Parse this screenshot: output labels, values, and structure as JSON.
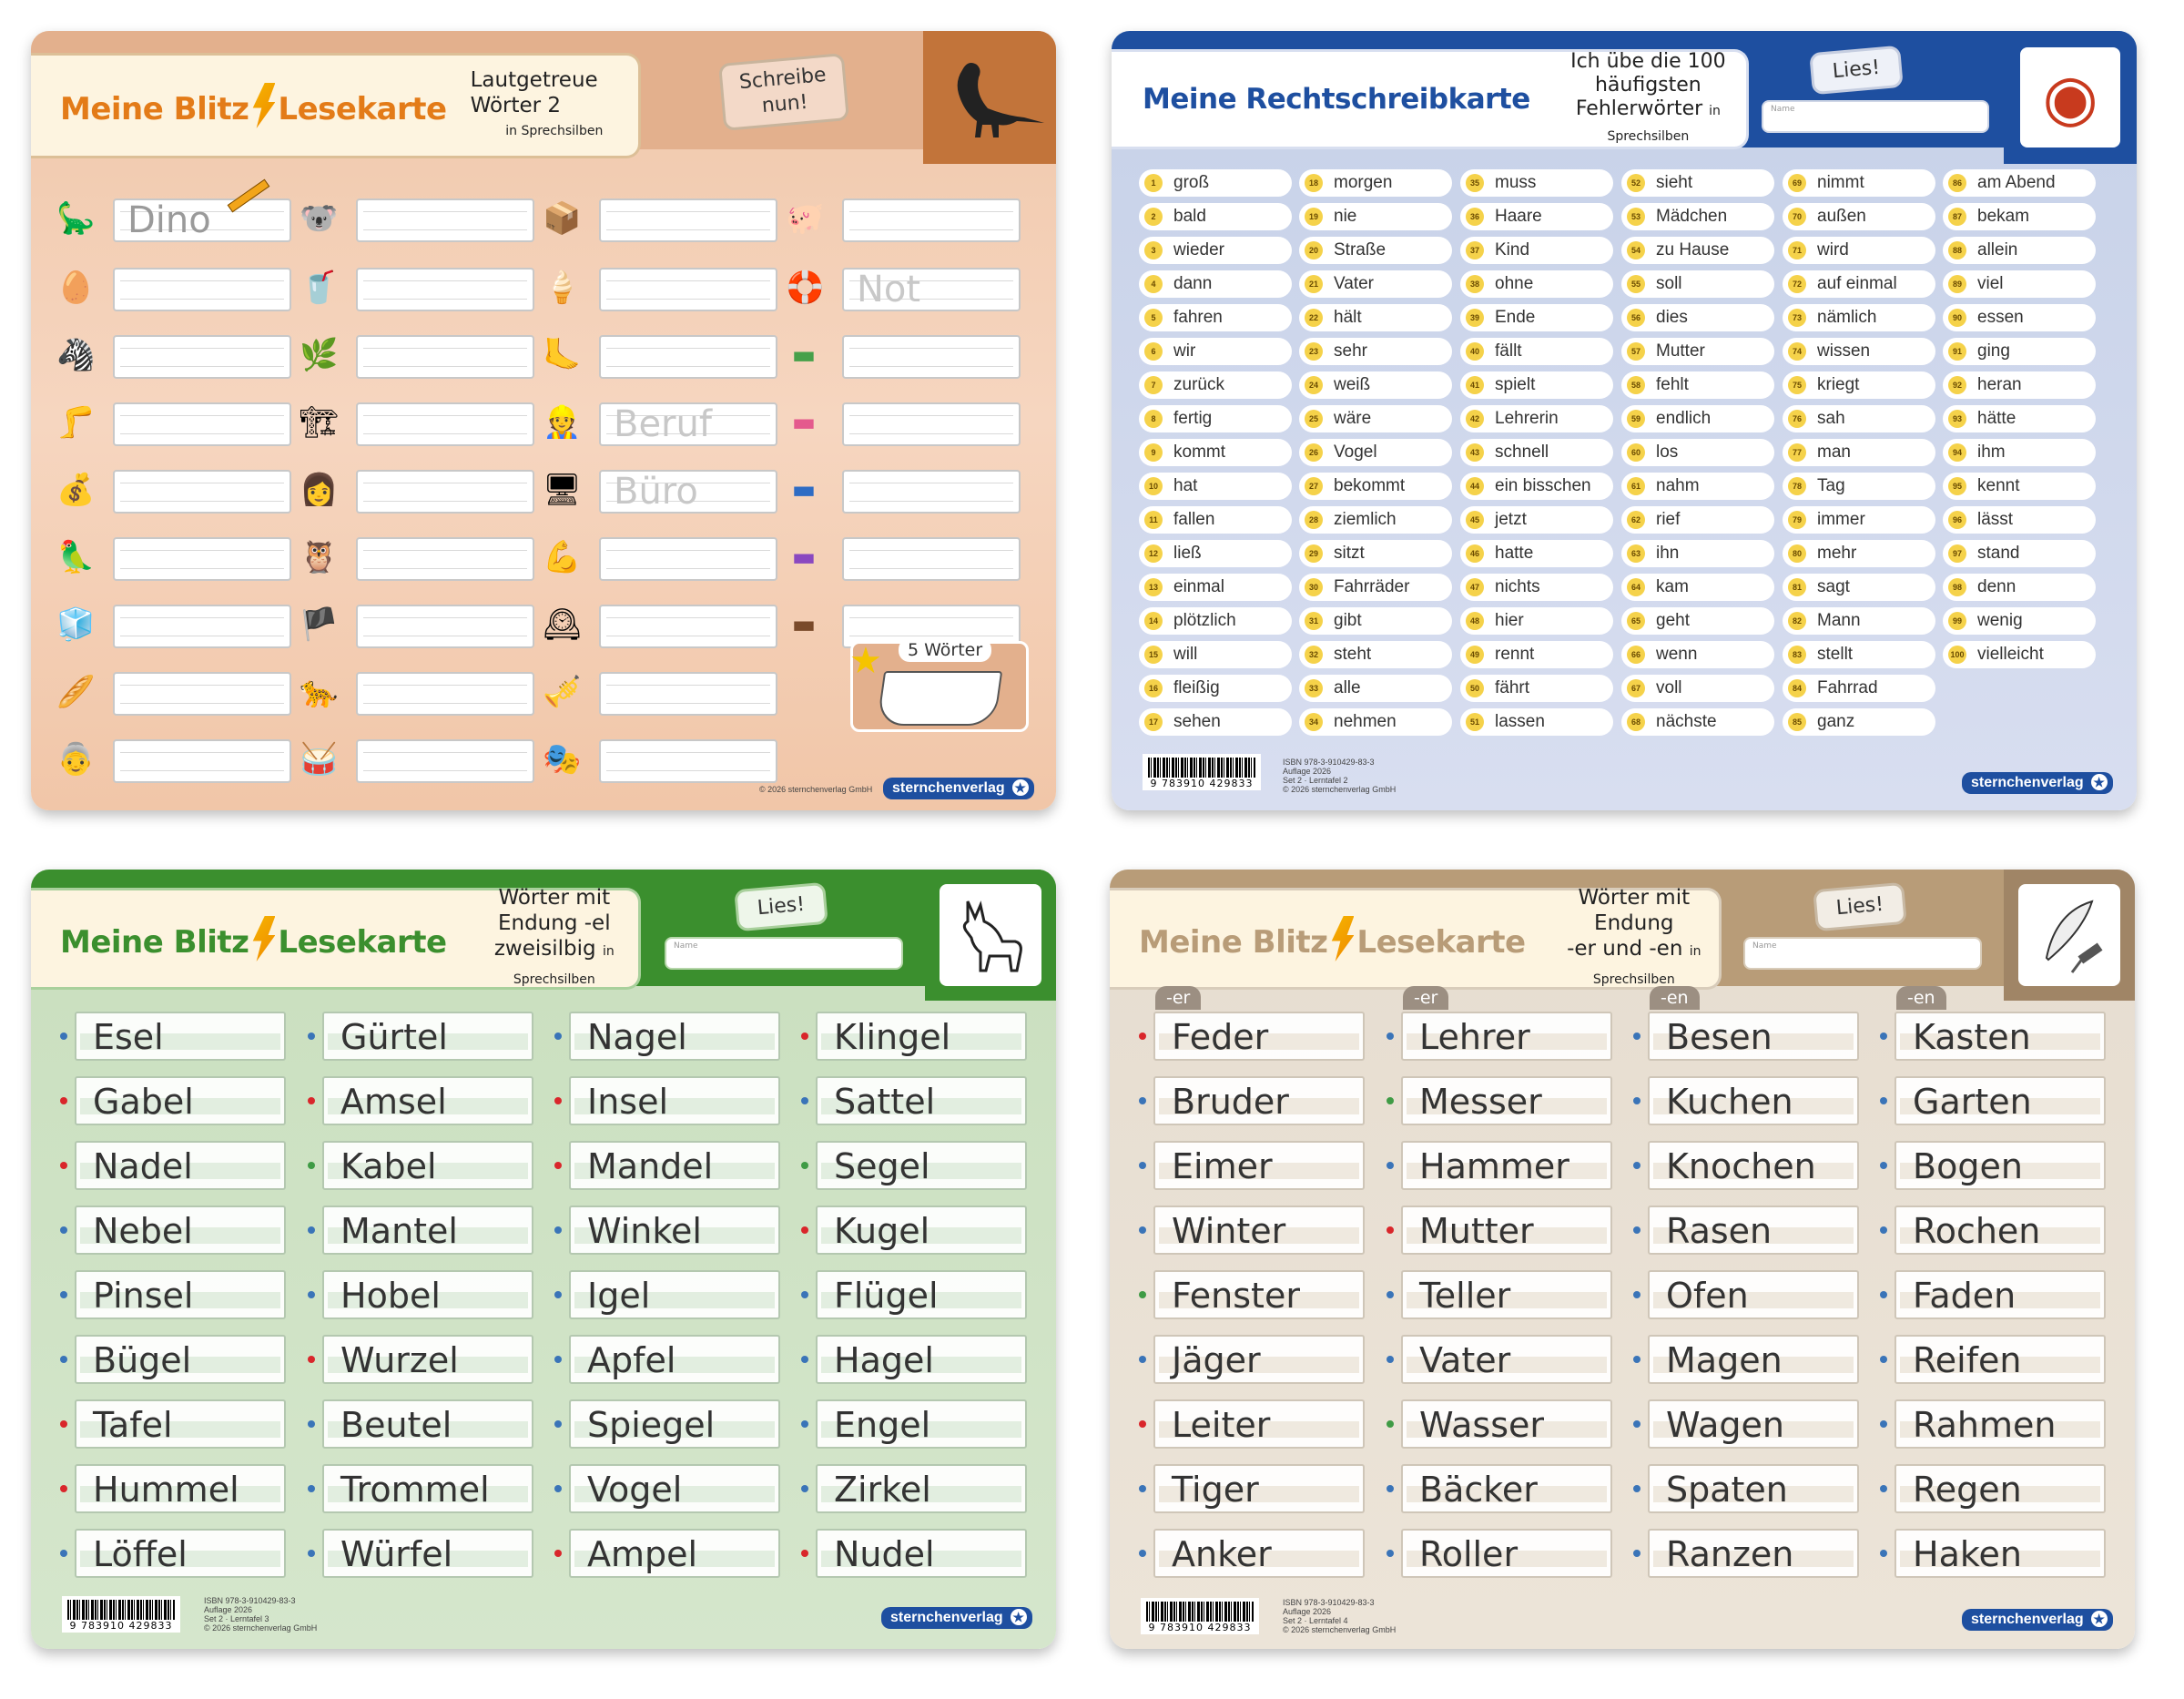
{
  "card1": {
    "brand_a": "Meine Blitz",
    "brand_b": "Lesekarte",
    "subtitle": "Lautgetreue Wörter 2",
    "subtitle_small": "in Sprechsilben",
    "tag": "Schreibe nun!",
    "icon": "dinosaur-icon",
    "pictures": [
      [
        "dinosaur",
        "koala",
        "bread-box",
        "pig"
      ],
      [
        "egg",
        "glass-cup",
        "ice-cream",
        "lifebuoy"
      ],
      [
        "zebra",
        "grass",
        "sole",
        "stamp-green"
      ],
      [
        "leg",
        "crane",
        "worker",
        "stamp-pink"
      ],
      [
        "sack",
        "woman",
        "computer",
        "stamp-blue"
      ],
      [
        "parrot",
        "owl",
        "arm",
        "stamp-purple"
      ],
      [
        "fridge",
        "pirate",
        "dial",
        "stamp-brown"
      ],
      [
        "bread",
        "leopard",
        "tuba",
        ""
      ],
      [
        "grandma",
        "drum",
        "stage",
        ""
      ]
    ],
    "ghost_words": {
      "dino": "Dino",
      "not": "Not",
      "beruf": "Beruf",
      "buero": "Büro"
    },
    "bonus_label": "5 Wörter",
    "copyright": "© 2026 sternchenverlag GmbH",
    "publisher": "sternchenverlag"
  },
  "card2": {
    "brand": "Meine Rechtschreibkarte",
    "subtitle1": "Ich übe die 100 häufigsten",
    "subtitle2": "Fehlerwörter",
    "subtitle_small": "in Sprechsilben",
    "tag": "Lies!",
    "name_label": "Name",
    "icon": "monkey-icon",
    "words": [
      "groß",
      "bald",
      "wieder",
      "dann",
      "fahren",
      "wir",
      "zurück",
      "fertig",
      "kommt",
      "hat",
      "fallen",
      "ließ",
      "einmal",
      "plötzlich",
      "will",
      "fleißig",
      "sehen",
      "morgen",
      "nie",
      "Straße",
      "Vater",
      "hält",
      "sehr",
      "weiß",
      "wäre",
      "Vogel",
      "bekommt",
      "ziemlich",
      "sitzt",
      "Fahrräder",
      "gibt",
      "steht",
      "alle",
      "nehmen",
      "muss",
      "Haare",
      "Kind",
      "ohne",
      "Ende",
      "fällt",
      "spielt",
      "Lehrerin",
      "schnell",
      "ein bisschen",
      "jetzt",
      "hatte",
      "nichts",
      "hier",
      "rennt",
      "fährt",
      "lassen",
      "sieht",
      "Mädchen",
      "zu Hause",
      "soll",
      "dies",
      "Mutter",
      "fehlt",
      "endlich",
      "los",
      "nahm",
      "rief",
      "ihn",
      "kam",
      "geht",
      "wenn",
      "voll",
      "nächste",
      "nimmt",
      "außen",
      "wird",
      "auf einmal",
      "nämlich",
      "wissen",
      "kriegt",
      "sah",
      "man",
      "Tag",
      "immer",
      "mehr",
      "sagt",
      "Mann",
      "stellt",
      "Fahrrad",
      "ganz",
      "am Abend",
      "bekam",
      "allein",
      "viel",
      "essen",
      "ging",
      "heran",
      "hätte",
      "ihm",
      "kennt",
      "lässt",
      "stand",
      "denn",
      "wenig",
      "vielleicht"
    ],
    "isbn": "ISBN 978-3-910429-83-3",
    "edition": "Auflage 2026",
    "set": "Set 2 · Lerntafel 2",
    "copyright": "© 2026 sternchenverlag GmbH",
    "barcode": "9 783910 429833",
    "publisher": "sternchenverlag"
  },
  "card3": {
    "brand_a": "Meine Blitz",
    "brand_b": "Lesekarte",
    "subtitle1": "Wörter mit Endung -el",
    "subtitle2": "zweisilbig",
    "subtitle_small": "in Sprechsilben",
    "tag": "Lies!",
    "name_label": "Name",
    "icon": "donkey-icon",
    "columns": [
      [
        "Esel",
        "Gabel",
        "Nadel",
        "Nebel",
        "Pinsel",
        "Bügel",
        "Tafel",
        "Hummel",
        "Löffel"
      ],
      [
        "Gürtel",
        "Amsel",
        "Kabel",
        "Mantel",
        "Hobel",
        "Wurzel",
        "Beutel",
        "Trommel",
        "Würfel"
      ],
      [
        "Nagel",
        "Insel",
        "Mandel",
        "Winkel",
        "Igel",
        "Apfel",
        "Spiegel",
        "Vogel",
        "Ampel"
      ],
      [
        "Klingel",
        "Sattel",
        "Segel",
        "Kugel",
        "Flügel",
        "Hagel",
        "Engel",
        "Zirkel",
        "Nudel"
      ]
    ],
    "dots": [
      [
        "blue",
        "red",
        "red",
        "blue",
        "blue",
        "blue",
        "red",
        "red",
        "blue"
      ],
      [
        "blue",
        "red",
        "green",
        "blue",
        "blue",
        "red",
        "blue",
        "blue",
        "blue"
      ],
      [
        "blue",
        "red",
        "red",
        "blue",
        "blue",
        "blue",
        "blue",
        "blue",
        "red"
      ],
      [
        "red",
        "blue",
        "green",
        "red",
        "blue",
        "blue",
        "blue",
        "blue",
        "red"
      ]
    ],
    "isbn": "ISBN 978-3-910429-83-3",
    "edition": "Auflage 2026",
    "set": "Set 2 · Lerntafel 3",
    "copyright": "© 2026 sternchenverlag GmbH",
    "barcode": "9 783910 429833",
    "publisher": "sternchenverlag"
  },
  "card4": {
    "brand_a": "Meine Blitz",
    "brand_b": "Lesekarte",
    "subtitle1": "Wörter mit Endung",
    "subtitle2": "-er und -en",
    "subtitle_small": "in Sprechsilben",
    "tag": "Lies!",
    "name_label": "Name",
    "icon": "quill-icon",
    "badges": [
      "-er",
      "-er",
      "-en",
      "-en"
    ],
    "columns": [
      [
        "Feder",
        "Bruder",
        "Eimer",
        "Winter",
        "Fenster",
        "Jäger",
        "Leiter",
        "Tiger",
        "Anker"
      ],
      [
        "Lehrer",
        "Messer",
        "Hammer",
        "Mutter",
        "Teller",
        "Vater",
        "Wasser",
        "Bäcker",
        "Roller"
      ],
      [
        "Besen",
        "Kuchen",
        "Knochen",
        "Rasen",
        "Ofen",
        "Magen",
        "Wagen",
        "Spaten",
        "Ranzen"
      ],
      [
        "Kasten",
        "Garten",
        "Bogen",
        "Rochen",
        "Faden",
        "Reifen",
        "Rahmen",
        "Regen",
        "Haken"
      ]
    ],
    "dots": [
      [
        "red",
        "blue",
        "blue",
        "blue",
        "green",
        "blue",
        "red",
        "blue",
        "blue"
      ],
      [
        "blue",
        "green",
        "blue",
        "red",
        "blue",
        "blue",
        "green",
        "blue",
        "blue"
      ],
      [
        "blue",
        "blue",
        "blue",
        "blue",
        "blue",
        "blue",
        "blue",
        "blue",
        "blue"
      ],
      [
        "blue",
        "blue",
        "blue",
        "blue",
        "blue",
        "blue",
        "blue",
        "blue",
        "blue"
      ]
    ],
    "isbn": "ISBN 978-3-910429-83-3",
    "edition": "Auflage 2026",
    "set": "Set 2 · Lerntafel 4",
    "copyright": "© 2026 sternchenverlag GmbH",
    "barcode": "9 783910 429833",
    "publisher": "sternchenverlag"
  },
  "colors": {
    "red": "#d9262b",
    "blue": "#3a74b8",
    "green": "#3f9b45",
    "brand_orange": "#e37b18",
    "brand_green": "#3b8f2e",
    "brand_beige": "#b89c78",
    "brand_blue": "#1e4fa0"
  }
}
